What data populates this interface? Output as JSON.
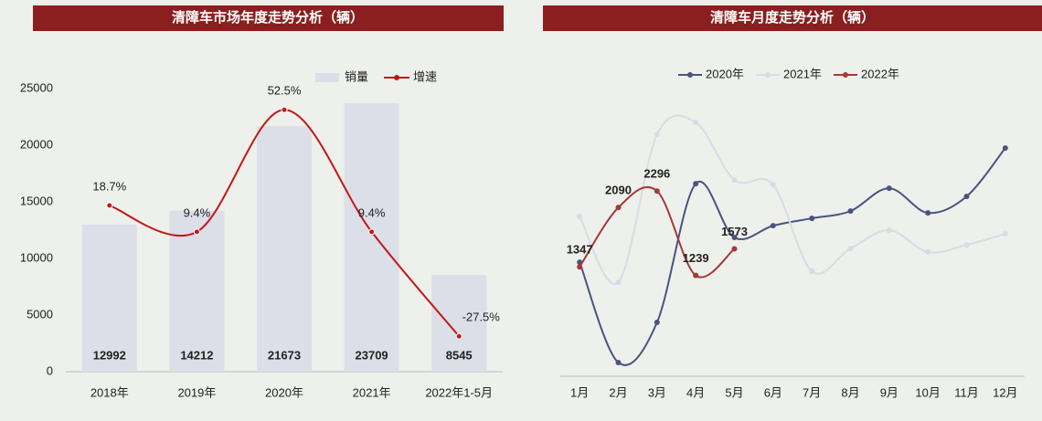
{
  "chart_data": [
    {
      "type": "bar",
      "title": "清障车市场年度走势分析（辆）",
      "categories": [
        "2018年",
        "2019年",
        "2020年",
        "2021年",
        "2022年1-5月"
      ],
      "series": [
        {
          "name": "销量",
          "type": "bar",
          "color": "#dcdee8",
          "values": [
            12992,
            14212,
            21673,
            23709,
            8545
          ]
        },
        {
          "name": "增速",
          "type": "line",
          "axis": "y2",
          "color": "#c01818",
          "values": [
            18.7,
            9.4,
            52.5,
            9.4,
            -27.5
          ],
          "value_labels": [
            "18.7%",
            "9.4%",
            "52.5%",
            "9.4%",
            "-27.5%"
          ]
        }
      ],
      "ylim": [
        0,
        25000
      ],
      "yticks": [
        0,
        5000,
        10000,
        15000,
        20000,
        25000
      ],
      "y2lim": [
        -40,
        60
      ],
      "legend": "top"
    },
    {
      "type": "line",
      "title": "清障车月度走势分析（辆）",
      "categories": [
        "1月",
        "2月",
        "3月",
        "4月",
        "5月",
        "6月",
        "7月",
        "8月",
        "9月",
        "10月",
        "11月",
        "12月"
      ],
      "series": [
        {
          "name": "2020年",
          "color": "#4a5380",
          "values": [
            1406,
            149,
            652,
            2389,
            1715,
            1863,
            1955,
            2046,
            2332,
            2023,
            2229,
            2835
          ]
        },
        {
          "name": "2021年",
          "color": "#d8dbe6",
          "values": [
            1977,
            1154,
            3006,
            3155,
            2435,
            2377,
            1292,
            1577,
            1806,
            1532,
            1623,
            1760
          ]
        },
        {
          "name": "2022年",
          "color": "#a33a3a",
          "values": [
            1347,
            2090,
            2296,
            1239,
            1573,
            null,
            null,
            null,
            null,
            null,
            null,
            null
          ],
          "labels": true
        }
      ],
      "ylim": [
        0,
        3500
      ],
      "legend": "top"
    }
  ]
}
